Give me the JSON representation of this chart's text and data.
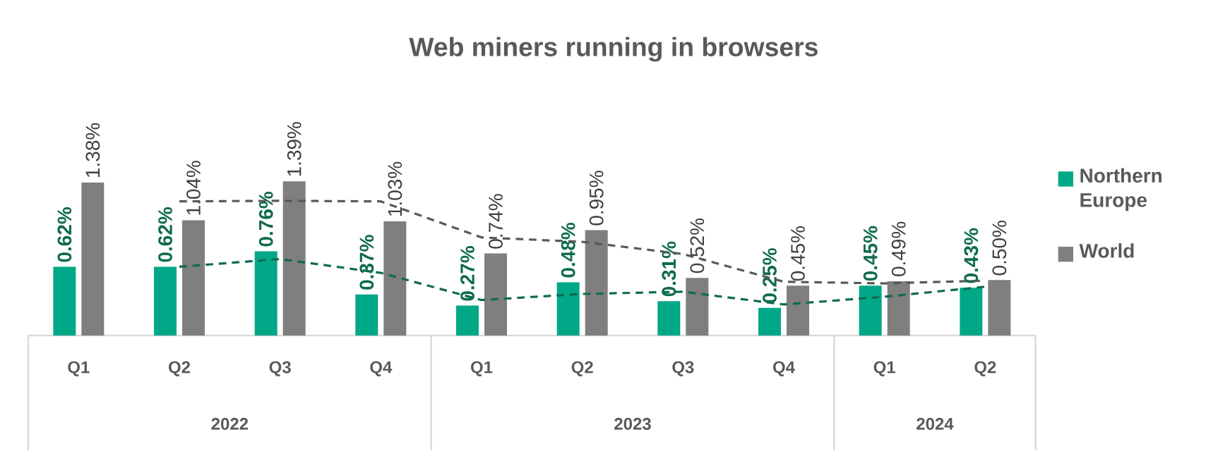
{
  "chart_data": {
    "type": "bar",
    "title": "Web miners running in browsers",
    "categories": [
      "Q1",
      "Q2",
      "Q3",
      "Q4",
      "Q1",
      "Q2",
      "Q3",
      "Q4",
      "Q1",
      "Q2"
    ],
    "annotations": [
      "2022",
      "2023",
      "2024"
    ],
    "series": [
      {
        "name": "Northern Europe",
        "color": "#00a887",
        "values": [
          0.62,
          0.62,
          0.76,
          0.37,
          0.27,
          0.48,
          0.31,
          0.25,
          0.45,
          0.43
        ],
        "value_labels": [
          "0.62%",
          "0.62%",
          "0.76%",
          "0.37%",
          "0.27%",
          "0.48%",
          "0.31%",
          "0.25%",
          "0.45%",
          "0.43%"
        ]
      },
      {
        "name": "World",
        "color": "#7f7f7f",
        "values": [
          1.38,
          1.04,
          1.39,
          1.03,
          0.74,
          0.95,
          0.52,
          0.45,
          0.49,
          0.5
        ],
        "value_labels": [
          "1.38%",
          "1.04%",
          "1.39%",
          "1.03%",
          "0.74%",
          "0.95%",
          "0.52%",
          "0.45%",
          "0.49%",
          "0.50%"
        ]
      },
      {
        "type": "line",
        "color": "#0f6b50",
        "line_style": "dashed",
        "values": [
          null,
          0.62,
          0.69,
          0.565,
          0.32,
          0.375,
          0.395,
          0.28,
          0.35,
          0.44
        ]
      },
      {
        "type": "line",
        "color": "#595959",
        "line_style": "dashed",
        "values": [
          null,
          1.21,
          1.215,
          1.21,
          0.885,
          0.845,
          0.735,
          0.485,
          0.47,
          0.495
        ]
      }
    ],
    "legend": "right"
  }
}
